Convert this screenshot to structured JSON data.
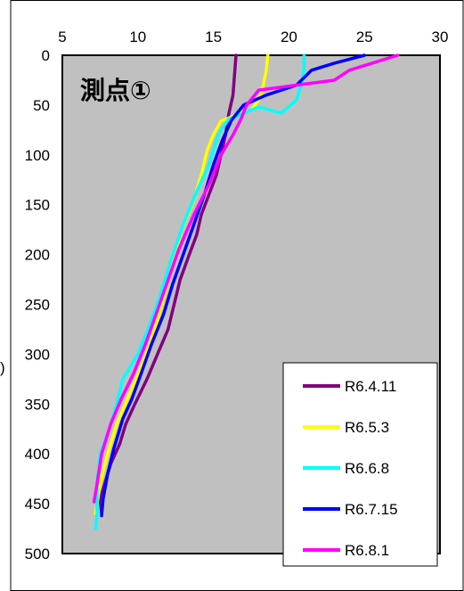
{
  "chart_data": {
    "type": "line",
    "title": "",
    "panel_label": "測点①",
    "edge_glyph": ")",
    "xlabel": "",
    "ylabel": "",
    "x_axis_position": "top",
    "y_axis_inverted": true,
    "xlim": [
      5,
      30
    ],
    "ylim": [
      0,
      500
    ],
    "x_ticks": [
      "5",
      "10",
      "15",
      "20",
      "25",
      "30"
    ],
    "y_ticks": [
      "0",
      "50",
      "100",
      "150",
      "200",
      "250",
      "300",
      "350",
      "400",
      "450",
      "500"
    ],
    "grid": false,
    "legend_position": "bottom-right",
    "background_color": "#c0c0c0",
    "series": [
      {
        "name": "R6.4.11",
        "color": "#800080",
        "points": [
          [
            16.5,
            0
          ],
          [
            16.4,
            20
          ],
          [
            16.3,
            40
          ],
          [
            16.0,
            60
          ],
          [
            15.8,
            80
          ],
          [
            15.5,
            100
          ],
          [
            15.2,
            120
          ],
          [
            14.7,
            140
          ],
          [
            14.2,
            160
          ],
          [
            13.9,
            180
          ],
          [
            13.4,
            200
          ],
          [
            12.8,
            225
          ],
          [
            12.4,
            250
          ],
          [
            12.0,
            275
          ],
          [
            11.3,
            300
          ],
          [
            10.6,
            325
          ],
          [
            9.8,
            350
          ],
          [
            9.2,
            370
          ],
          [
            8.8,
            390
          ],
          [
            8.2,
            410
          ],
          [
            7.8,
            430
          ],
          [
            7.5,
            445
          ],
          [
            7.6,
            460
          ]
        ]
      },
      {
        "name": "R6.5.3",
        "color": "#ffff00",
        "points": [
          [
            18.6,
            0
          ],
          [
            18.5,
            15
          ],
          [
            18.3,
            30
          ],
          [
            18.0,
            45
          ],
          [
            17.5,
            55
          ],
          [
            16.5,
            60
          ],
          [
            15.5,
            66
          ],
          [
            15.0,
            80
          ],
          [
            14.6,
            95
          ],
          [
            14.2,
            120
          ],
          [
            13.6,
            150
          ],
          [
            12.9,
            175
          ],
          [
            12.3,
            210
          ],
          [
            11.6,
            250
          ],
          [
            11.0,
            280
          ],
          [
            10.3,
            310
          ],
          [
            9.3,
            345
          ],
          [
            8.6,
            370
          ],
          [
            8.0,
            400
          ],
          [
            7.5,
            430
          ],
          [
            7.2,
            460
          ]
        ]
      },
      {
        "name": "R6.6.8",
        "color": "#00ffff",
        "points": [
          [
            21.0,
            0
          ],
          [
            21.0,
            15
          ],
          [
            20.8,
            30
          ],
          [
            20.5,
            45
          ],
          [
            19.5,
            58
          ],
          [
            18.0,
            52
          ],
          [
            16.0,
            64
          ],
          [
            15.3,
            80
          ],
          [
            14.7,
            110
          ],
          [
            13.8,
            140
          ],
          [
            13.0,
            170
          ],
          [
            12.2,
            205
          ],
          [
            11.5,
            240
          ],
          [
            10.8,
            270
          ],
          [
            10.0,
            300
          ],
          [
            9.0,
            325
          ],
          [
            8.6,
            350
          ],
          [
            8.0,
            380
          ],
          [
            7.5,
            400
          ],
          [
            7.3,
            430
          ],
          [
            7.3,
            460
          ],
          [
            7.2,
            475
          ]
        ]
      },
      {
        "name": "R6.7.15",
        "color": "#0000ff",
        "points": [
          [
            25.0,
            0
          ],
          [
            23.0,
            8
          ],
          [
            21.5,
            15
          ],
          [
            20.5,
            30
          ],
          [
            18.5,
            40
          ],
          [
            17.0,
            50
          ],
          [
            16.2,
            65
          ],
          [
            15.6,
            85
          ],
          [
            15.0,
            110
          ],
          [
            14.4,
            140
          ],
          [
            13.7,
            170
          ],
          [
            13.0,
            200
          ],
          [
            12.3,
            230
          ],
          [
            11.7,
            260
          ],
          [
            10.9,
            290
          ],
          [
            10.2,
            320
          ],
          [
            9.6,
            345
          ],
          [
            9.0,
            365
          ],
          [
            8.4,
            395
          ],
          [
            8.0,
            420
          ],
          [
            7.7,
            445
          ],
          [
            7.6,
            462
          ]
        ]
      },
      {
        "name": "R6.8.1",
        "color": "#ff00ff",
        "points": [
          [
            27.2,
            0
          ],
          [
            25.5,
            8
          ],
          [
            24.0,
            15
          ],
          [
            23.0,
            25
          ],
          [
            20.5,
            30
          ],
          [
            18.0,
            35
          ],
          [
            17.2,
            50
          ],
          [
            16.8,
            65
          ],
          [
            16.3,
            80
          ],
          [
            15.5,
            100
          ],
          [
            14.7,
            130
          ],
          [
            13.7,
            160
          ],
          [
            12.7,
            195
          ],
          [
            11.9,
            230
          ],
          [
            11.2,
            260
          ],
          [
            10.5,
            290
          ],
          [
            9.7,
            320
          ],
          [
            8.9,
            345
          ],
          [
            8.2,
            370
          ],
          [
            7.6,
            400
          ],
          [
            7.3,
            430
          ],
          [
            7.1,
            448
          ]
        ]
      }
    ]
  }
}
